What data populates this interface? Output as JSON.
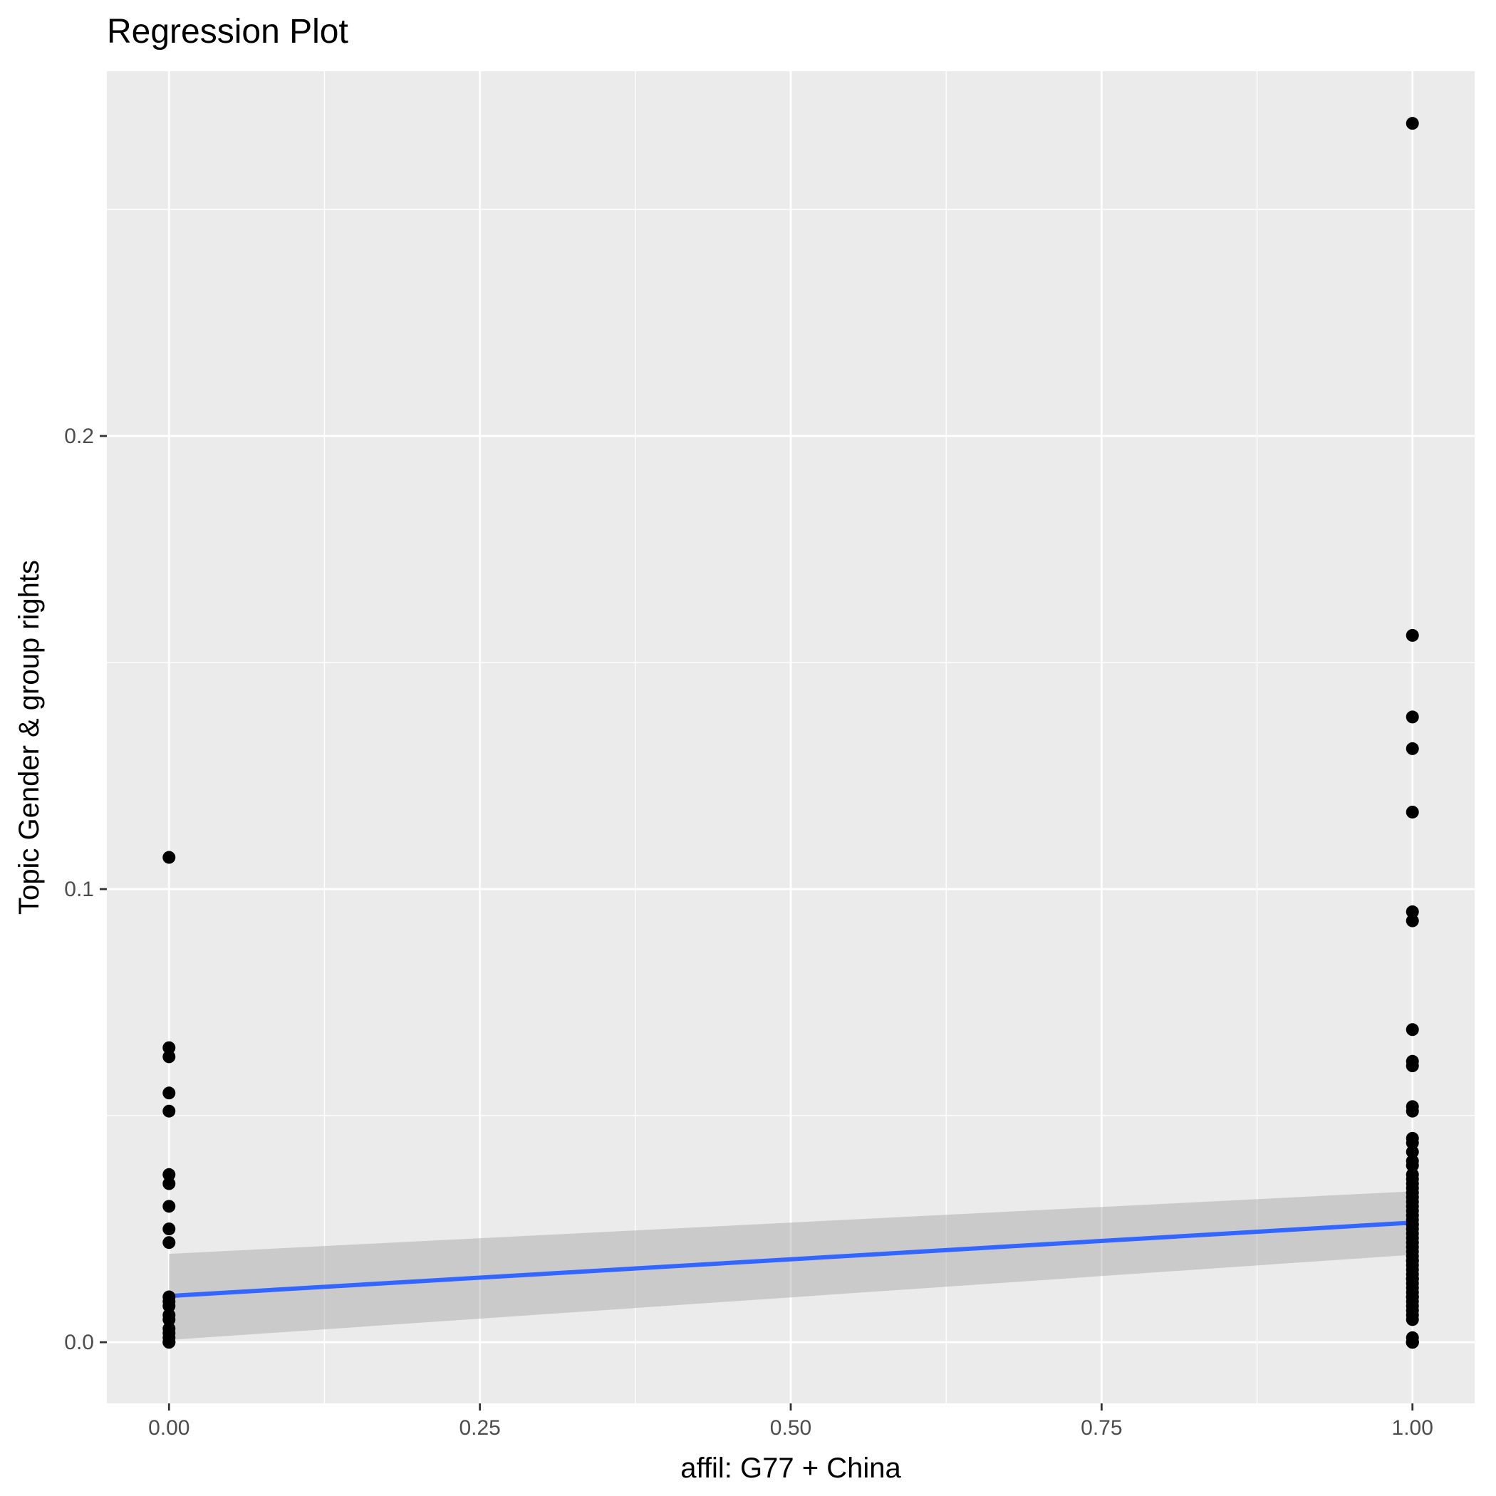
{
  "chart_data": {
    "type": "scatter",
    "title": "Regression Plot",
    "xlabel": "affil: G77 + China",
    "ylabel": "Topic Gender & group rights",
    "xlim": [
      -0.05,
      1.05
    ],
    "ylim": [
      -0.0135,
      0.2805
    ],
    "x_ticks": [
      0,
      0.25,
      0.5,
      0.75,
      1
    ],
    "x_tick_labels": [
      "0.00",
      "0.25",
      "0.50",
      "0.75",
      "1.00"
    ],
    "y_ticks": [
      0,
      0.1,
      0.2
    ],
    "y_tick_labels": [
      "0.0",
      "0.1",
      "0.2"
    ],
    "y_minor_ticks": [
      0.05,
      0.15,
      0.25
    ],
    "x_minor_ticks": [
      0.125,
      0.375,
      0.625,
      0.875
    ],
    "grid": true,
    "colors": {
      "panel": "#ebebeb",
      "grid": "#ffffff",
      "points": "#000000",
      "line": "#3366ff",
      "ribbon": "#999999"
    },
    "series": [
      {
        "x": [
          0,
          0,
          0,
          0,
          0,
          0,
          0,
          0,
          0,
          0,
          0,
          0,
          0,
          0,
          0,
          0,
          0,
          0,
          0,
          0
        ],
        "y": [
          0.107,
          0.065,
          0.063,
          0.055,
          0.051,
          0.037,
          0.035,
          0.03,
          0.025,
          0.022,
          0.01,
          0.009,
          0.008,
          0.006,
          0.005,
          0.003,
          0.002,
          0.001,
          0.0,
          0.0
        ]
      },
      {
        "x": [
          1,
          1,
          1,
          1,
          1,
          1,
          1,
          1,
          1,
          1,
          1,
          1,
          1,
          1,
          1,
          1,
          1,
          1,
          1,
          1,
          1,
          1,
          1,
          1,
          1,
          1,
          1,
          1,
          1,
          1,
          1,
          1,
          1,
          1,
          1,
          1,
          1,
          1,
          1,
          1,
          1,
          1,
          1,
          1,
          1,
          1,
          1,
          1,
          1,
          1,
          1,
          1,
          1,
          1,
          1,
          1,
          1,
          1,
          1,
          1
        ],
        "y": [
          0.269,
          0.156,
          0.138,
          0.131,
          0.117,
          0.095,
          0.093,
          0.069,
          0.062,
          0.061,
          0.052,
          0.051,
          0.045,
          0.044,
          0.042,
          0.04,
          0.039,
          0.037,
          0.036,
          0.035,
          0.034,
          0.033,
          0.032,
          0.031,
          0.03,
          0.029,
          0.028,
          0.027,
          0.026,
          0.025,
          0.024,
          0.023,
          0.022,
          0.021,
          0.02,
          0.019,
          0.018,
          0.017,
          0.016,
          0.015,
          0.014,
          0.013,
          0.012,
          0.011,
          0.01,
          0.009,
          0.008,
          0.007,
          0.006,
          0.005,
          0.001,
          0.0,
          0.0,
          0.0,
          0.0,
          0.0,
          0.026,
          0.018,
          0.014,
          0.01
        ]
      }
    ],
    "regression": {
      "x": [
        0,
        1
      ],
      "y": [
        0.0102,
        0.0264
      ],
      "ci_lower": [
        0.0005,
        0.0193
      ],
      "ci_upper": [
        0.0195,
        0.0333
      ]
    }
  }
}
